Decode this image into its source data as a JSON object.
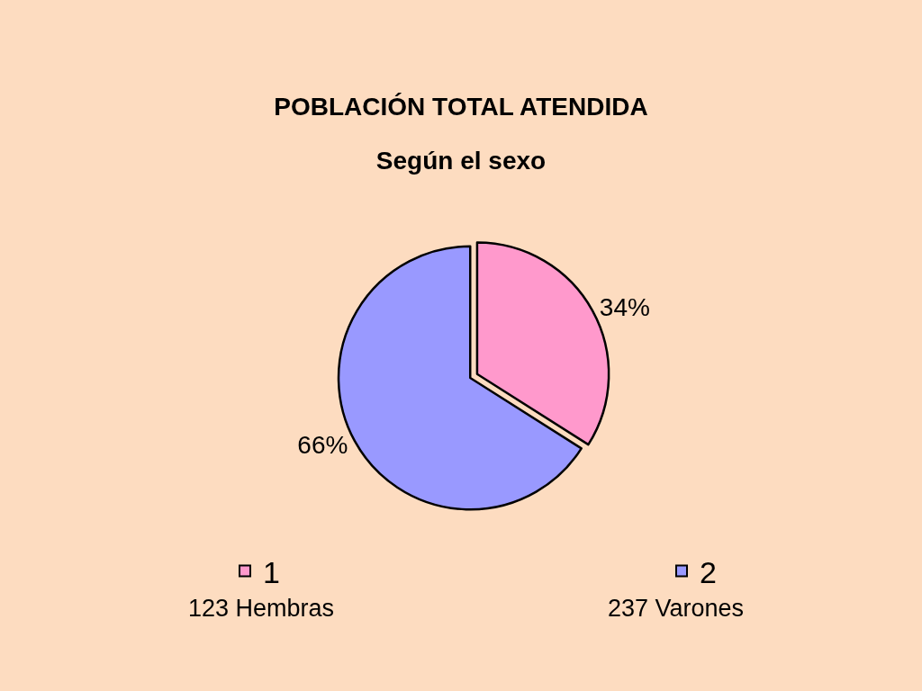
{
  "chart_data": {
    "type": "pie",
    "title": "POBLACIÓN TOTAL ATENDIDA",
    "subtitle": "Según el sexo",
    "categories": [
      "1",
      "2"
    ],
    "values": [
      34,
      66
    ],
    "colors": [
      "#ff99cc",
      "#9999ff"
    ],
    "value_labels": [
      "34%",
      "66%"
    ],
    "annotations": [
      "123 Hembras",
      "237 Varones"
    ],
    "legend": "bottom"
  }
}
